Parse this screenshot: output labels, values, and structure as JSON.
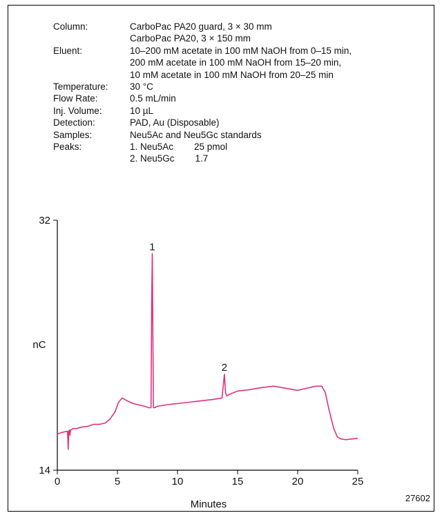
{
  "params": [
    {
      "label": "Column:",
      "lines": [
        "CarboPac PA20 guard, 3 × 30 mm",
        "CarboPac PA20, 3 × 150 mm"
      ]
    },
    {
      "label": "Eluent:",
      "lines": [
        "10–200 mM acetate in 100 mM NaOH from 0–15 min,",
        "200 mM acetate in 100 mM NaOH from 15–20 min,",
        "10 mM acetate in 100 mM NaOH from 20–25 min"
      ]
    },
    {
      "label": "Temperature:",
      "lines": [
        "30 °C"
      ]
    },
    {
      "label": "Flow Rate:",
      "lines": [
        "0.5 mL/min"
      ]
    },
    {
      "label": "Inj. Volume:",
      "lines": [
        "10 µL"
      ]
    },
    {
      "label": "Detection:",
      "lines": [
        "PAD, Au (Disposable)"
      ]
    },
    {
      "label": "Samples:",
      "lines": [
        "Neu5Ac and Neu5Gc standards"
      ]
    },
    {
      "label": "Peaks:",
      "lines": [
        "1. Neu5Ac        25 pmol",
        "2. Neu5Gc        1.7"
      ]
    }
  ],
  "figure_id": "27602",
  "colors": {
    "trace": "#e0317a",
    "axis": "#000000"
  },
  "chart_data": {
    "type": "line",
    "xlabel": "Minutes",
    "ylabel": "nC",
    "xlim": [
      0,
      25
    ],
    "ylim": [
      14,
      32
    ],
    "xticks": [
      0,
      5,
      10,
      15,
      20,
      25
    ],
    "yticks": [
      14,
      32
    ],
    "peak_labels": [
      {
        "label": "1",
        "x": 7.9,
        "y": 29.6
      },
      {
        "label": "2",
        "x": 13.9,
        "y": 20.9
      }
    ],
    "series": [
      {
        "x": [
          0,
          0.3,
          0.8,
          0.85,
          0.9,
          0.95,
          1.0,
          1.05,
          1.1,
          1.15,
          1.3,
          1.6,
          2.0,
          2.5,
          3.0,
          3.5,
          4.0,
          4.4,
          4.8,
          5.1,
          5.4,
          5.8,
          6.3,
          6.8,
          7.3,
          7.6,
          7.8,
          7.85,
          7.9,
          7.95,
          8.0,
          8.1,
          8.3,
          9.0,
          10.0,
          11.0,
          12.0,
          13.0,
          13.7,
          13.8,
          13.9,
          14.0,
          14.1,
          14.3,
          15.0,
          16.0,
          17.0,
          18.0,
          19.0,
          20.0,
          21.0,
          21.5,
          22.0,
          22.3,
          22.6,
          23.0,
          23.3,
          23.6,
          24.0,
          24.5,
          25.0
        ],
        "y": [
          16.6,
          16.7,
          16.8,
          16.8,
          15.5,
          16.8,
          16.9,
          16.5,
          16.9,
          16.9,
          17.0,
          17.0,
          17.1,
          17.15,
          17.3,
          17.3,
          17.4,
          17.7,
          18.2,
          18.9,
          19.2,
          19.0,
          18.8,
          18.7,
          18.6,
          18.5,
          18.5,
          26.0,
          29.6,
          24.0,
          18.5,
          18.5,
          18.6,
          18.7,
          18.8,
          18.9,
          19.0,
          19.1,
          19.2,
          20.0,
          20.9,
          19.6,
          19.35,
          19.45,
          19.7,
          19.8,
          19.95,
          20.05,
          19.9,
          19.75,
          19.95,
          20.05,
          20.05,
          19.6,
          18.4,
          17.0,
          16.4,
          16.25,
          16.2,
          16.25,
          16.3
        ]
      }
    ]
  }
}
